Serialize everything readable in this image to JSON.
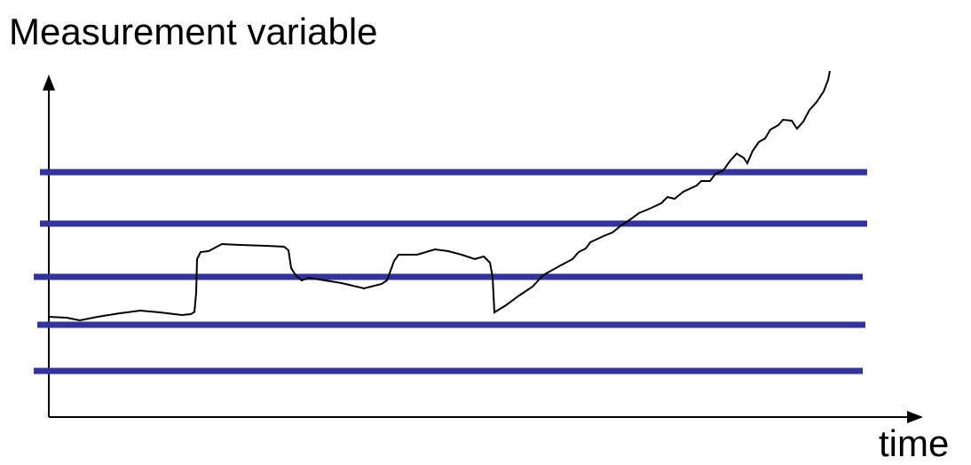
{
  "title": "Measurement variable",
  "x_axis_label": "time"
}
